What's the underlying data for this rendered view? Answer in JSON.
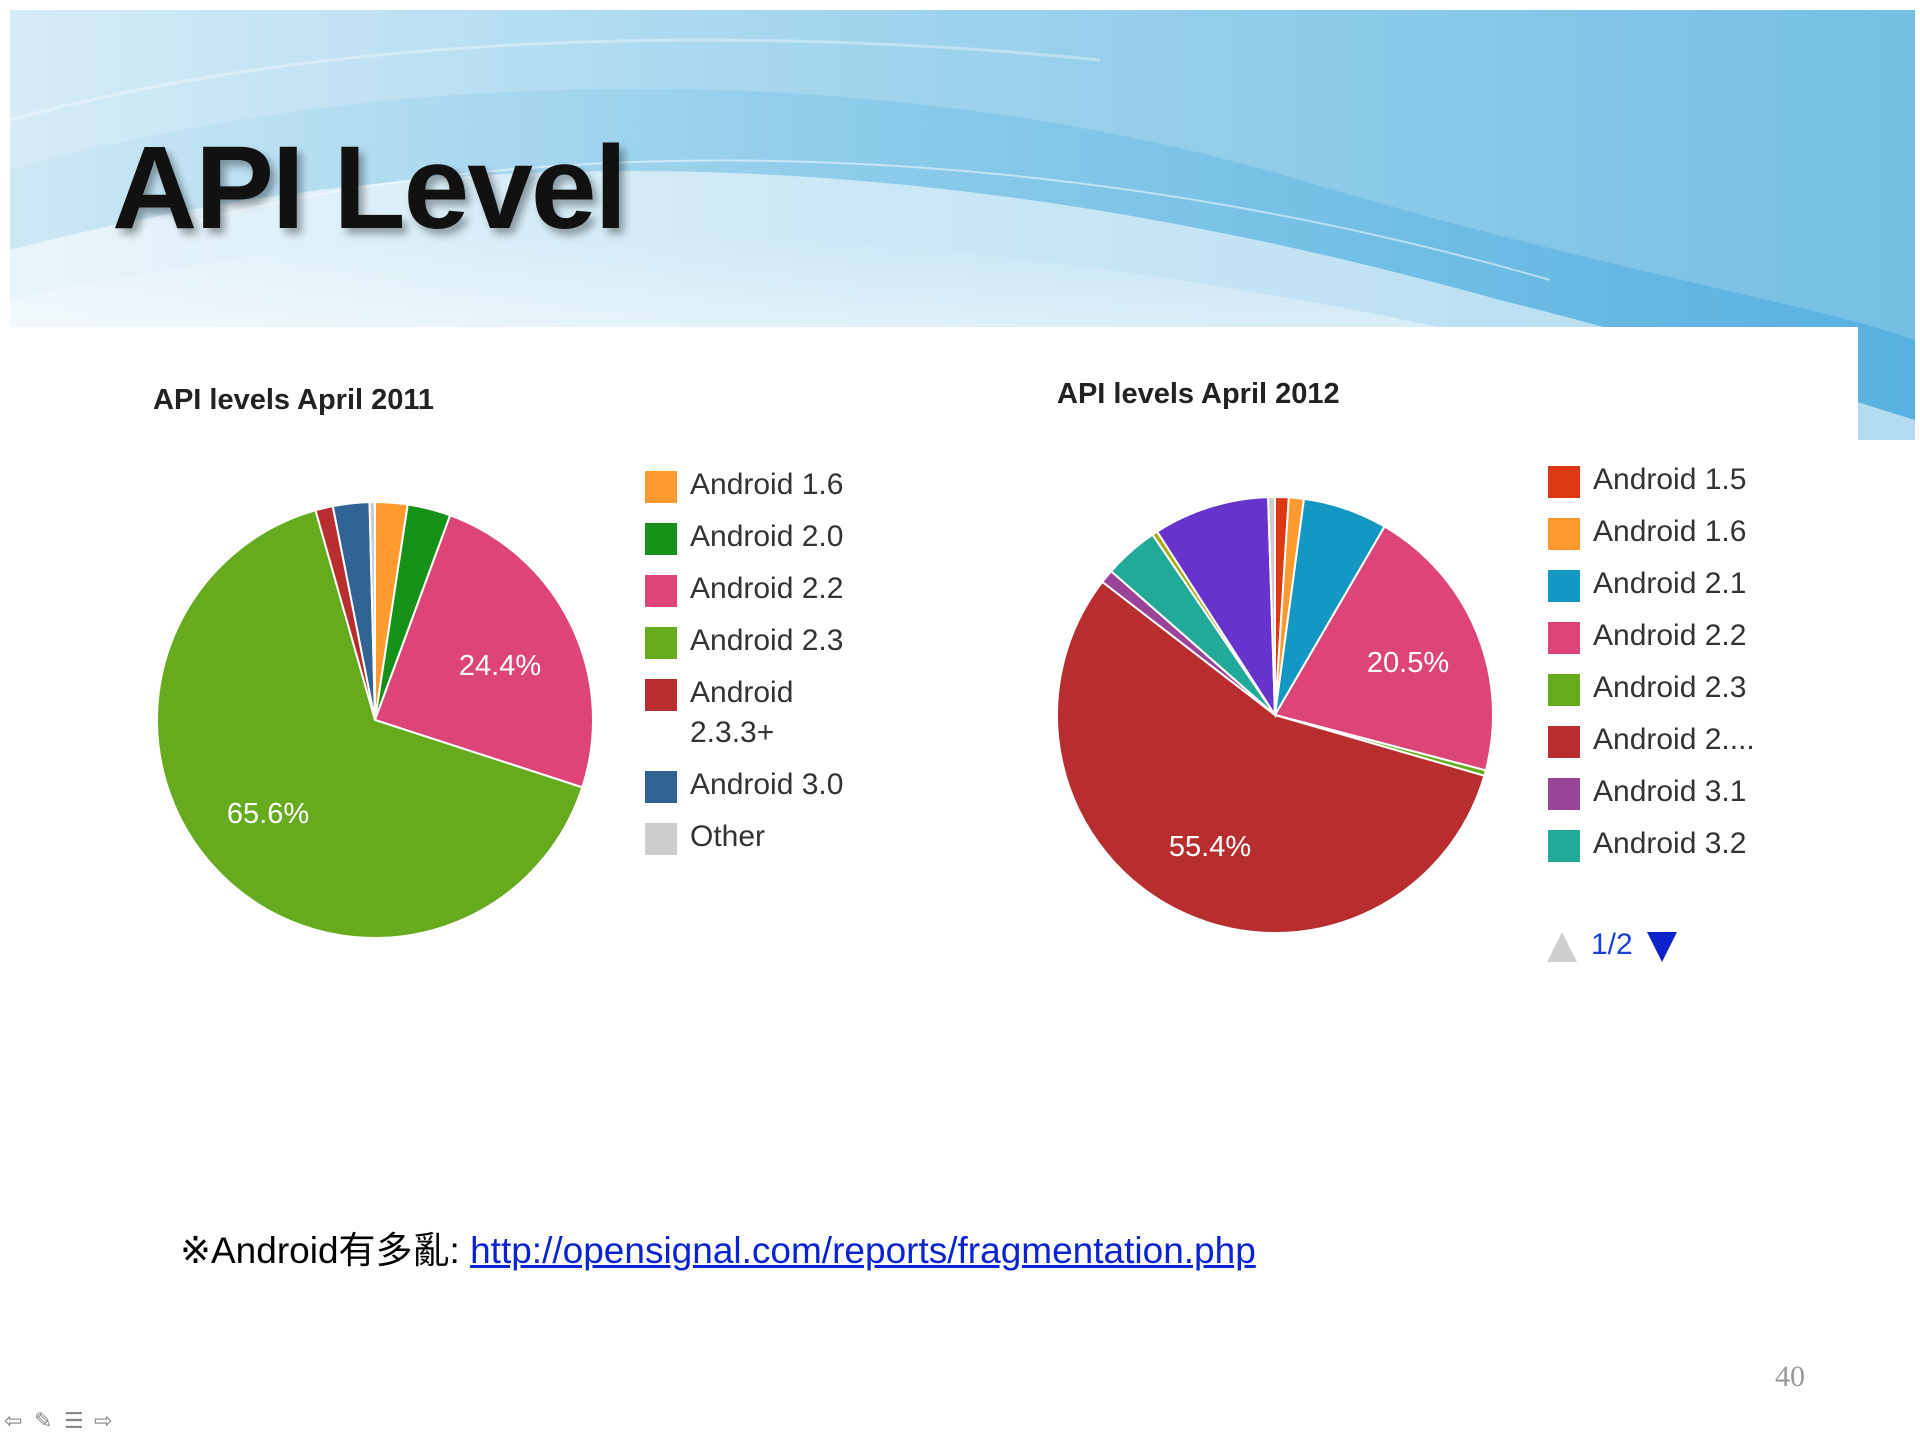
{
  "slide": {
    "title": "API Level",
    "page_number": "40",
    "footnote_prefix": "※Android有多亂: ",
    "footnote_link": "http://opensignal.com/reports/fragmentation.php"
  },
  "nav_icons": [
    "prev-icon",
    "pen-icon",
    "menu-icon",
    "next-icon"
  ],
  "chart_data": [
    {
      "type": "pie",
      "title": "API levels April 2011",
      "slices": [
        {
          "name": "Android 1.6",
          "value": 2.4,
          "color": "#ff9a2e"
        },
        {
          "name": "Android 2.0",
          "value": 3.2,
          "color": "#16921a"
        },
        {
          "name": "Android 2.2",
          "value": 24.4,
          "color": "#dd4477"
        },
        {
          "name": "Android 2.3",
          "value": 65.6,
          "color": "#66aa1e"
        },
        {
          "name": "Android 2.3.3+",
          "value": 1.3,
          "color": "#b82e2e"
        },
        {
          "name": "Android 3.0",
          "value": 2.7,
          "color": "#316395"
        },
        {
          "name": "Other",
          "value": 0.4,
          "color": "#cccccc"
        }
      ],
      "data_labels": [
        "24.4%",
        "65.6%"
      ],
      "legend": [
        "Android 1.6",
        "Android 2.0",
        "Android 2.2",
        "Android 2.3",
        "Android 2.3.3+",
        "Android 3.0",
        "Other"
      ],
      "legend_position": "right"
    },
    {
      "type": "pie",
      "title": "API levels April 2012",
      "slices": [
        {
          "name": "Android 1.5",
          "value": 1.0,
          "color": "#dc3912"
        },
        {
          "name": "Android 1.6",
          "value": 1.1,
          "color": "#ff9a2e"
        },
        {
          "name": "Android 2.1",
          "value": 6.2,
          "color": "#1597c4"
        },
        {
          "name": "Android 2.2",
          "value": 20.5,
          "color": "#dd4477"
        },
        {
          "name": "Android 2.3",
          "value": 0.4,
          "color": "#66aa1e"
        },
        {
          "name": "Android 2....",
          "value": 55.4,
          "color": "#b82e2e"
        },
        {
          "name": "Android 3.1",
          "value": 1.0,
          "color": "#994499"
        },
        {
          "name": "Android 3.2",
          "value": 4.0,
          "color": "#22aa99"
        },
        {
          "name": "",
          "value": 0.4,
          "color": "#aaaa11"
        },
        {
          "name": "",
          "value": 8.5,
          "color": "#6633cc"
        },
        {
          "name": "",
          "value": 0.5,
          "color": "#cccccc"
        }
      ],
      "data_labels": [
        "20.5%",
        "55.4%"
      ],
      "legend": [
        "Android 1.5",
        "Android 1.6",
        "Android 2.1",
        "Android 2.2",
        "Android 2.3",
        "Android 2....",
        "Android 3.1",
        "Android 3.2"
      ],
      "legend_position": "right",
      "legend_pager": "1/2"
    }
  ]
}
